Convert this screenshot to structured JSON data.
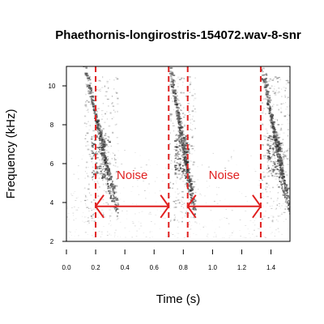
{
  "chart_data": {
    "type": "spectrogram",
    "title": "Phaethornis-longirostris-154072.wav-8-snr",
    "xlabel": "Time (s)",
    "ylabel": "Frequency (kHz)",
    "xlim": [
      0.0,
      1.53
    ],
    "ylim": [
      2.0,
      11.0
    ],
    "x_ticks": [
      "0.0",
      "0.2",
      "0.4",
      "0.6",
      "0.8",
      "1.0",
      "1.2",
      "1.4"
    ],
    "x_tick_values": [
      0.0,
      0.2,
      0.4,
      0.6,
      0.8,
      1.0,
      1.2,
      1.4
    ],
    "y_ticks": [
      "2",
      "4",
      "6",
      "8",
      "10"
    ],
    "y_tick_values": [
      2,
      4,
      6,
      8,
      10
    ],
    "grid": false,
    "signal_boundaries_s": [
      0.2,
      0.7,
      0.83,
      1.33
    ],
    "noise_intervals": [
      {
        "label": "Noise",
        "start": 0.2,
        "end": 0.7,
        "frequency_khz": 3.8
      },
      {
        "label": "Noise",
        "start": 0.83,
        "end": 1.33,
        "frequency_khz": 3.8
      }
    ],
    "calls": [
      {
        "start": 0.12,
        "end": 0.35
      },
      {
        "start": 0.7,
        "end": 0.88
      },
      {
        "start": 1.33,
        "end": 1.53
      }
    ],
    "annotation_color": "#e02020"
  }
}
